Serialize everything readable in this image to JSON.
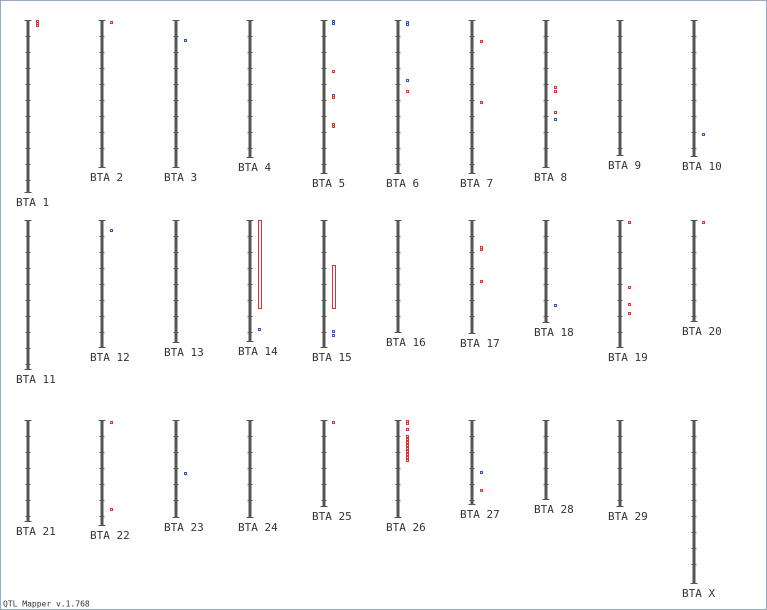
{
  "chromosomes": [
    {
      "label": "BTA 1",
      "length": 173,
      "qtls": [
        {
          "pos": 0,
          "color": "#e03030"
        },
        {
          "pos": 2,
          "color": "#e03030"
        },
        {
          "pos": 4,
          "color": "#e03030"
        }
      ]
    },
    {
      "label": "BTA 2",
      "length": 148,
      "qtls": [
        {
          "pos": 1,
          "color": "#e03030"
        }
      ]
    },
    {
      "label": "BTA 3",
      "length": 148,
      "qtls": [
        {
          "pos": 19,
          "color": "#3050d0"
        }
      ]
    },
    {
      "label": "BTA 4",
      "length": 138,
      "qtls": []
    },
    {
      "label": "BTA 5",
      "length": 154,
      "qtls": [
        {
          "pos": 0,
          "color": "#3050d0"
        },
        {
          "pos": 2,
          "color": "#3050d0"
        },
        {
          "pos": 50,
          "color": "#e03030"
        },
        {
          "pos": 74,
          "color": "#3050d0"
        },
        {
          "pos": 76,
          "color": "#e03030"
        },
        {
          "pos": 103,
          "color": "#e03030"
        },
        {
          "pos": 105,
          "color": "#e03030"
        }
      ]
    },
    {
      "label": "BTA 6",
      "length": 154,
      "qtls": [
        {
          "pos": 1,
          "color": "#3050d0"
        },
        {
          "pos": 3,
          "color": "#3050d0"
        },
        {
          "pos": 59,
          "color": "#3050d0"
        },
        {
          "pos": 70,
          "color": "#e03030"
        }
      ]
    },
    {
      "label": "BTA 7",
      "length": 154,
      "qtls": [
        {
          "pos": 20,
          "color": "#e03030"
        },
        {
          "pos": 81,
          "color": "#e03030"
        }
      ]
    },
    {
      "label": "BTA 8",
      "length": 148,
      "qtls": [
        {
          "pos": 66,
          "color": "#e03030"
        },
        {
          "pos": 70,
          "color": "#e03030"
        },
        {
          "pos": 91,
          "color": "#e03030"
        },
        {
          "pos": 98,
          "color": "#3050d0"
        }
      ]
    },
    {
      "label": "BTA 9",
      "length": 136,
      "qtls": []
    },
    {
      "label": "BTA 10",
      "length": 137,
      "qtls": [
        {
          "pos": 113,
          "color": "#3050d0"
        }
      ]
    },
    {
      "label": "BTA 11",
      "length": 150,
      "qtls": []
    },
    {
      "label": "BTA 12",
      "length": 128,
      "qtls": [
        {
          "pos": 9,
          "color": "#3050d0"
        }
      ]
    },
    {
      "label": "BTA 13",
      "length": 123,
      "qtls": []
    },
    {
      "label": "BTA 14",
      "length": 122,
      "qtls": [
        {
          "start": 0,
          "end": 88,
          "color": "#e03030"
        },
        {
          "pos": 108,
          "color": "#3050d0"
        }
      ]
    },
    {
      "label": "BTA 15",
      "length": 128,
      "qtls": [
        {
          "start": 45,
          "end": 88,
          "color": "#e03030"
        },
        {
          "pos": 110,
          "color": "#3050d0"
        },
        {
          "pos": 114,
          "color": "#3050d0"
        }
      ]
    },
    {
      "label": "BTA 16",
      "length": 113,
      "qtls": []
    },
    {
      "label": "BTA 17",
      "length": 114,
      "qtls": [
        {
          "pos": 26,
          "color": "#e03030"
        },
        {
          "pos": 28,
          "color": "#e03030"
        },
        {
          "pos": 60,
          "color": "#e03030"
        }
      ]
    },
    {
      "label": "BTA 18",
      "length": 103,
      "qtls": [
        {
          "pos": 84,
          "color": "#3050d0"
        }
      ]
    },
    {
      "label": "BTA 19",
      "length": 128,
      "qtls": [
        {
          "pos": 1,
          "color": "#e03030"
        },
        {
          "pos": 66,
          "color": "#e03030"
        },
        {
          "pos": 83,
          "color": "#e03030"
        },
        {
          "pos": 92,
          "color": "#e03030"
        }
      ]
    },
    {
      "label": "BTA 20",
      "length": 102,
      "qtls": [
        {
          "pos": 1,
          "color": "#e03030"
        }
      ]
    },
    {
      "label": "BTA 21",
      "length": 102,
      "qtls": []
    },
    {
      "label": "BTA 22",
      "length": 106,
      "qtls": [
        {
          "pos": 1,
          "color": "#e03030"
        },
        {
          "pos": 88,
          "color": "#e03030"
        }
      ]
    },
    {
      "label": "BTA 23",
      "length": 98,
      "qtls": [
        {
          "pos": 52,
          "color": "#3050d0"
        }
      ]
    },
    {
      "label": "BTA 24",
      "length": 98,
      "qtls": []
    },
    {
      "label": "BTA 25",
      "length": 87,
      "qtls": [
        {
          "pos": 1,
          "color": "#e03030"
        }
      ]
    },
    {
      "label": "BTA 26",
      "length": 98,
      "qtls": [
        {
          "pos": 0,
          "color": "#e03030"
        },
        {
          "pos": 2,
          "color": "#e03030"
        },
        {
          "pos": 8,
          "color": "#e03030"
        },
        {
          "pos": 15,
          "color": "#e03030"
        },
        {
          "pos": 18,
          "color": "#e03030"
        },
        {
          "pos": 21,
          "color": "#e03030"
        },
        {
          "pos": 24,
          "color": "#e03030"
        },
        {
          "pos": 27,
          "color": "#e03030"
        },
        {
          "pos": 30,
          "color": "#e03030"
        },
        {
          "pos": 33,
          "color": "#e03030"
        },
        {
          "pos": 36,
          "color": "#e03030"
        },
        {
          "pos": 39,
          "color": "#e03030"
        }
      ]
    },
    {
      "label": "BTA 27",
      "length": 85,
      "qtls": [
        {
          "pos": 51,
          "color": "#3050d0"
        },
        {
          "pos": 69,
          "color": "#e03030"
        }
      ]
    },
    {
      "label": "BTA 28",
      "length": 80,
      "qtls": []
    },
    {
      "label": "BTA 29",
      "length": 87,
      "qtls": []
    },
    {
      "label": "BTA X",
      "length": 164,
      "qtls": []
    }
  ],
  "footer": "QTL Mapper v.1.768"
}
